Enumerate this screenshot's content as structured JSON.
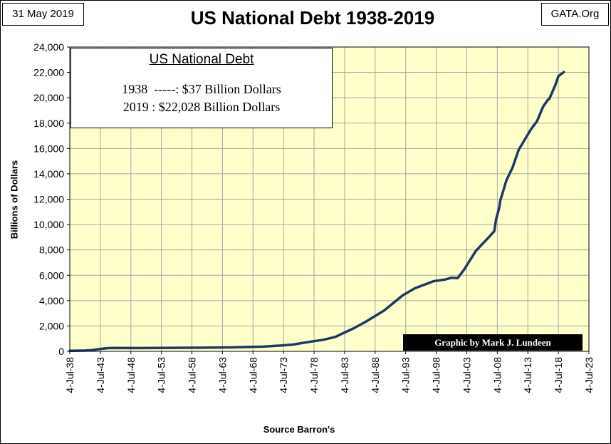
{
  "header": {
    "date": "31 May 2019",
    "title": "US National Debt 1938-2019",
    "source_tag": "GATA.Org"
  },
  "legend_box": {
    "title": "US National Debt",
    "line1": "1938  -----: $37 Billion Dollars",
    "line2": "2019 : $22,028 Billion Dollars"
  },
  "credit": "Graphic by Mark J. Lundeen",
  "colors": {
    "plot_background": "#ffffcc",
    "line": "#1f3864",
    "grid": "#a6a6a6"
  },
  "chart_data": {
    "type": "line",
    "title": "US National Debt 1938-2019",
    "xlabel": "Source Barron's",
    "ylabel": "Billions of Dollars",
    "xlim": [
      1938.5,
      2023.5
    ],
    "ylim": [
      0,
      24000
    ],
    "y_ticks": [
      "0",
      "2,000",
      "4,000",
      "6,000",
      "8,000",
      "10,000",
      "12,000",
      "14,000",
      "16,000",
      "18,000",
      "20,000",
      "22,000",
      "24,000"
    ],
    "x_ticks": [
      "4-Jul-38",
      "4-Jul-43",
      "4-Jul-48",
      "4-Jul-53",
      "4-Jul-58",
      "4-Jul-63",
      "4-Jul-68",
      "4-Jul-73",
      "4-Jul-78",
      "4-Jul-83",
      "4-Jul-88",
      "4-Jul-93",
      "4-Jul-98",
      "4-Jul-03",
      "4-Jul-08",
      "4-Jul-13",
      "4-Jul-18",
      "4-Jul-23"
    ],
    "grid": true,
    "series": [
      {
        "x": [
          1938.5,
          1941,
          1942,
          1943,
          1944,
          1945,
          1946,
          1950,
          1955,
          1960,
          1965,
          1968,
          1970,
          1973,
          1975,
          1978,
          1980,
          1982,
          1983,
          1985,
          1987,
          1990,
          1993,
          1995,
          1998,
          2000,
          2001,
          2002,
          2003,
          2005,
          2007,
          2008,
          2008.3,
          2008.8,
          2009,
          2010,
          2011,
          2012,
          2013,
          2014,
          2015,
          2016,
          2016.8,
          2017,
          2018,
          2018.5,
          2019.4
        ],
        "y": [
          37,
          60,
          90,
          160,
          220,
          260,
          270,
          257,
          274,
          286,
          317,
          347,
          370,
          458,
          533,
          772,
          908,
          1142,
          1377,
          1823,
          2350,
          3233,
          4411,
          4974,
          5526,
          5674,
          5807,
          5770,
          6400,
          7933,
          8950,
          9480,
          10400,
          11300,
          11900,
          13500,
          14500,
          15900,
          16700,
          17500,
          18150,
          19300,
          19850,
          19900,
          21000,
          21700,
          22028
        ]
      }
    ]
  }
}
